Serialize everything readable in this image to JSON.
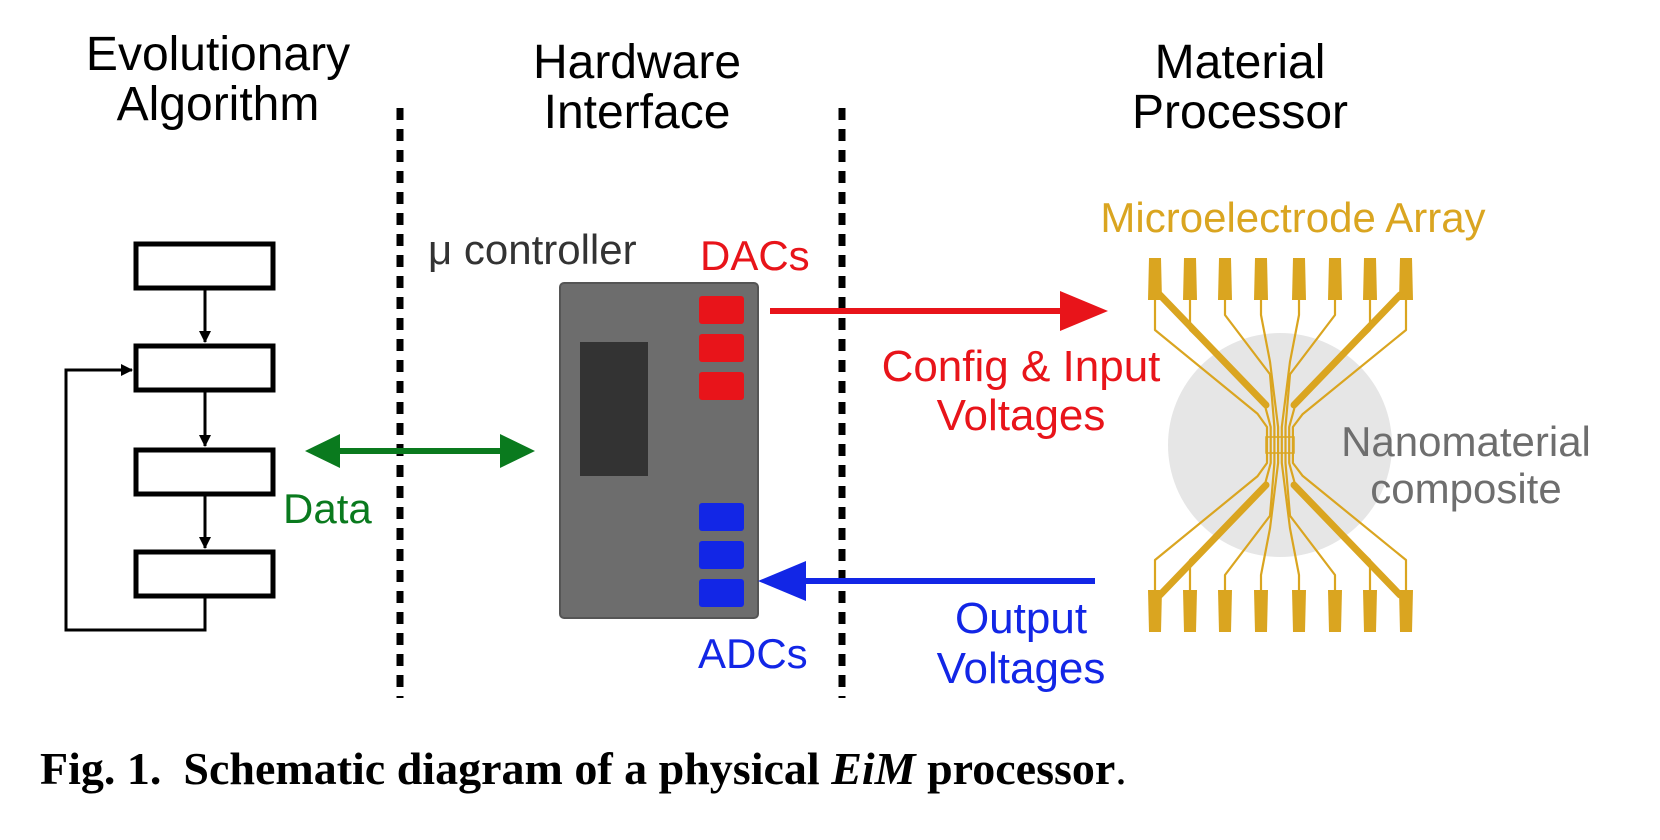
{
  "sections": {
    "left": [
      "Evolutionary",
      "Algorithm"
    ],
    "middle": [
      "Hardware",
      "Interface"
    ],
    "right": [
      "Material",
      "Processor"
    ]
  },
  "labels": {
    "controller": "μ controller",
    "dacs": "DACs",
    "adcs": "ADCs",
    "data": "Data",
    "config": [
      "Config & Input",
      "Voltages"
    ],
    "output": [
      "Output",
      "Voltages"
    ],
    "array": "Microelectrode Array",
    "nano": [
      "Nanomaterial",
      "composite"
    ]
  },
  "caption": {
    "prefix": "Fig. 1.",
    "main": "Schematic diagram of a physical",
    "emph": "EiM",
    "suffix": "processor",
    "end": "."
  },
  "colors": {
    "data": "#0a7a1e",
    "dac": "#e8141a",
    "adc": "#1226e6",
    "electrode": "#daa520",
    "controller": "#6d6d6d",
    "nano": "#e6e6e6",
    "nano_text": "#6e6e6e"
  }
}
